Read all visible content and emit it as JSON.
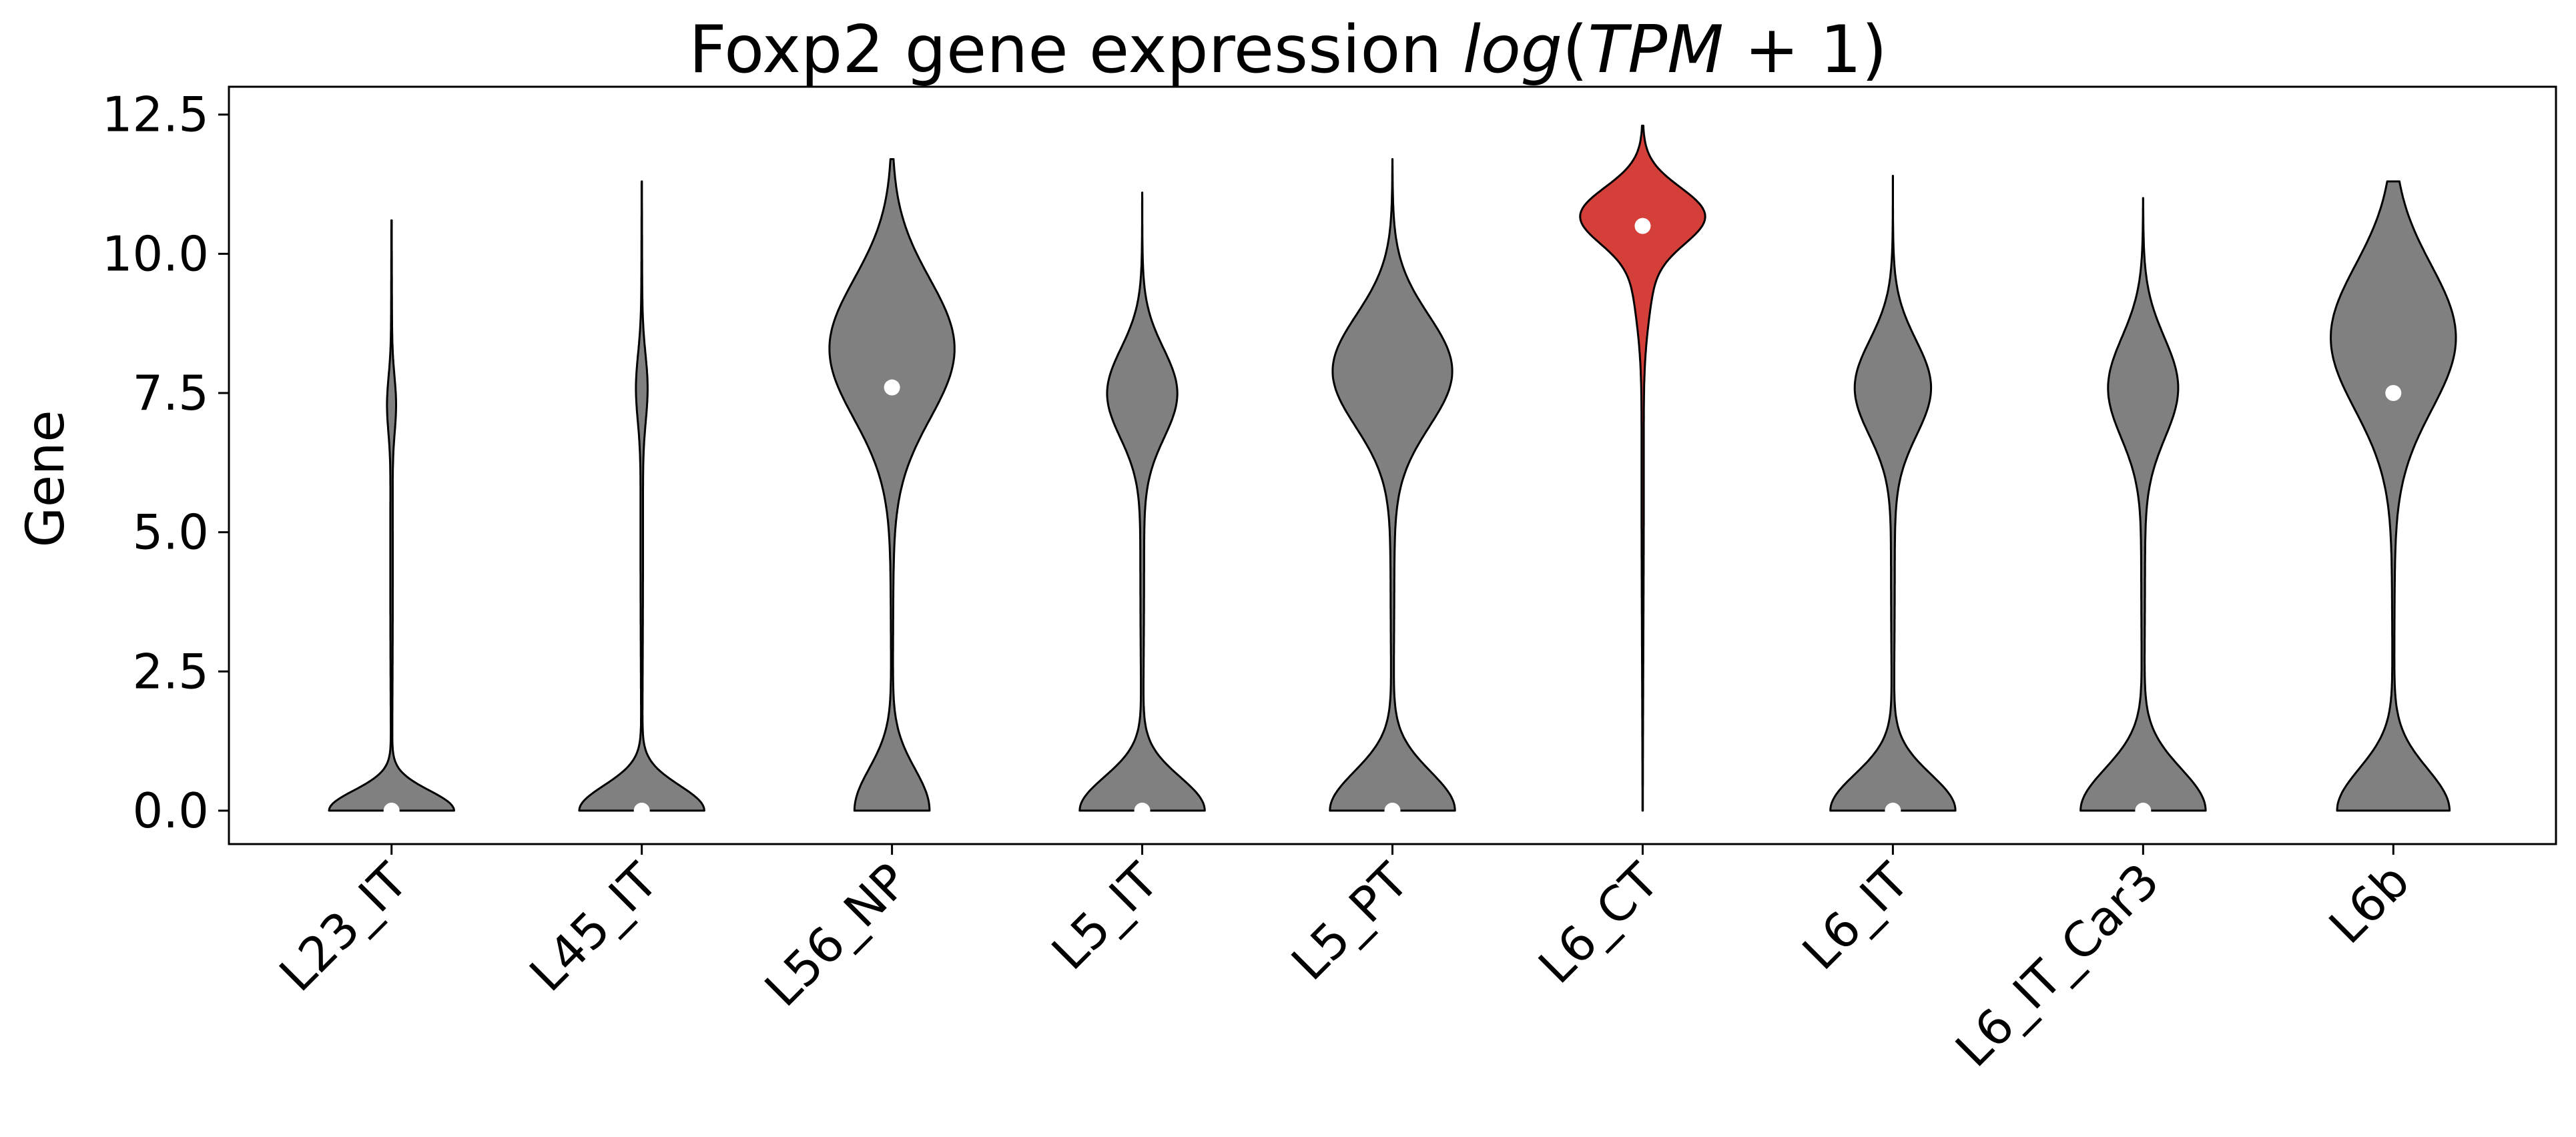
{
  "chart_data": {
    "type": "violin",
    "title": {
      "prefix": "Foxp2 gene expression ",
      "math_log": "log",
      "math_open": "(",
      "math_tpm": "TPM",
      "math_plus": " + 1",
      "math_close": ")"
    },
    "ylabel": "Gene",
    "xlabel": "",
    "ylim": [
      -0.6,
      13.0
    ],
    "yticks": [
      0.0,
      2.5,
      5.0,
      7.5,
      10.0,
      12.5
    ],
    "ytick_labels": [
      "0.0",
      "2.5",
      "5.0",
      "7.5",
      "10.0",
      "12.5"
    ],
    "categories": [
      "L23_IT",
      "L45_IT",
      "L56_NP",
      "L5_IT",
      "L5_PT",
      "L6_CT",
      "L6_IT",
      "L6_IT_Car3",
      "L6b"
    ],
    "highlight": "L6_CT",
    "colors": {
      "default": "#808080",
      "highlight": "#d43f3a",
      "median": "#ffffff",
      "outline": "#000000"
    },
    "medians": [
      0.0,
      0.0,
      7.6,
      0.0,
      0.0,
      10.5,
      0.0,
      0.0,
      7.5
    ],
    "max_values": [
      10.6,
      11.3,
      11.7,
      11.1,
      11.7,
      12.3,
      11.4,
      11.0,
      11.3
    ],
    "violins": [
      {
        "name": "L23_IT",
        "min": 0,
        "max": 10.6,
        "modes": [
          [
            0.0,
            0.36,
            1.0
          ],
          [
            7.3,
            0.5,
            0.06
          ],
          [
            4.5,
            3.0,
            0.02
          ]
        ]
      },
      {
        "name": "L45_IT",
        "min": 0,
        "max": 11.3,
        "modes": [
          [
            0.0,
            0.45,
            1.0
          ],
          [
            7.6,
            0.6,
            0.08
          ],
          [
            5.0,
            3.0,
            0.02
          ]
        ]
      },
      {
        "name": "L56_NP",
        "min": 0,
        "max": 11.7,
        "modes": [
          [
            0.0,
            0.75,
            0.6
          ],
          [
            8.3,
            1.25,
            1.0
          ],
          [
            4.5,
            2.5,
            0.02
          ]
        ]
      },
      {
        "name": "L5_IT",
        "min": 0,
        "max": 11.1,
        "modes": [
          [
            0.0,
            0.6,
            1.0
          ],
          [
            7.5,
            0.8,
            0.55
          ],
          [
            4.5,
            2.5,
            0.03
          ]
        ]
      },
      {
        "name": "L5_PT",
        "min": 0,
        "max": 11.7,
        "modes": [
          [
            0.0,
            0.7,
            1.0
          ],
          [
            7.9,
            1.0,
            0.95
          ],
          [
            4.5,
            2.5,
            0.03
          ]
        ]
      },
      {
        "name": "L6_CT",
        "min": 0,
        "max": 12.3,
        "modes": [
          [
            10.7,
            0.5,
            1.0
          ],
          [
            9.8,
            0.9,
            0.18
          ],
          [
            6.0,
            3.0,
            0.02
          ]
        ]
      },
      {
        "name": "L6_IT",
        "min": 0,
        "max": 11.4,
        "modes": [
          [
            0.0,
            0.65,
            1.0
          ],
          [
            7.6,
            0.85,
            0.6
          ],
          [
            4.5,
            2.5,
            0.03
          ]
        ]
      },
      {
        "name": "L6_IT_Car3",
        "min": 0,
        "max": 11.0,
        "modes": [
          [
            0.0,
            0.75,
            1.0
          ],
          [
            7.6,
            0.9,
            0.55
          ],
          [
            4.5,
            2.5,
            0.03
          ]
        ]
      },
      {
        "name": "L6b",
        "min": 0,
        "max": 11.3,
        "modes": [
          [
            0.0,
            0.75,
            0.9
          ],
          [
            8.5,
            1.3,
            1.0
          ],
          [
            4.5,
            2.5,
            0.02
          ]
        ]
      }
    ]
  }
}
